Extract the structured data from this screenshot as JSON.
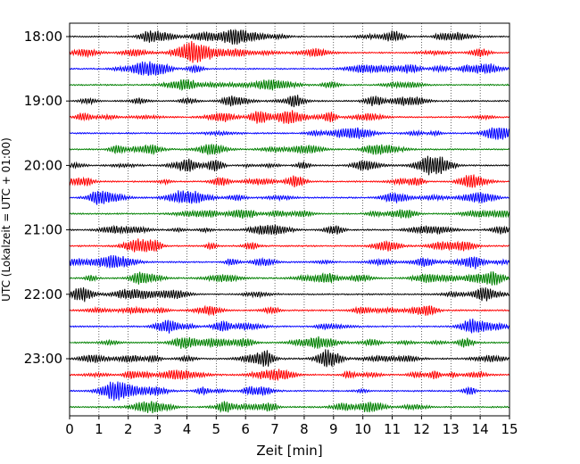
{
  "chart_data": {
    "type": "line",
    "title": "",
    "xlabel": "Zeit  [min]",
    "ylabel": "UTC (Lokalzeit = UTC + 01:00)",
    "xlim": [
      0,
      15
    ],
    "x_ticks": [
      "0",
      "1",
      "2",
      "3",
      "4",
      "5",
      "6",
      "7",
      "8",
      "9",
      "10",
      "11",
      "12",
      "13",
      "14",
      "15"
    ],
    "y_tick_labels": [
      {
        "label": "18:00",
        "trace_index": 0
      },
      {
        "label": "19:00",
        "trace_index": 4
      },
      {
        "label": "20:00",
        "trace_index": 8
      },
      {
        "label": "21:00",
        "trace_index": 12
      },
      {
        "label": "22:00",
        "trace_index": 16
      },
      {
        "label": "23:00",
        "trace_index": 20
      }
    ],
    "trace_interval_min": 15,
    "trace_count": 24,
    "trace_colors": [
      "#000000",
      "#ff0000",
      "#0000ff",
      "#008000"
    ],
    "vertical_grid": "dotted",
    "legend": "none"
  }
}
